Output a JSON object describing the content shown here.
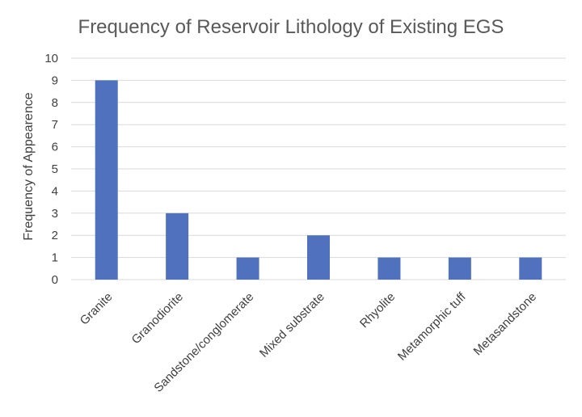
{
  "chart_data": {
    "type": "bar",
    "title": "Frequency of Reservoir Lithology of Existing EGS",
    "xlabel": "",
    "ylabel": "Frequency of Appearence",
    "categories": [
      "Granite",
      "Granodiorite",
      "Sandstone/conglomerate",
      "Mixed substrate",
      "Rhyolite",
      "Metamorphic tuff",
      "Metasandstone"
    ],
    "values": [
      9,
      3,
      1,
      2,
      1,
      1,
      1
    ],
    "ylim": [
      0,
      10
    ],
    "yticks": [
      0,
      1,
      2,
      3,
      4,
      5,
      6,
      7,
      8,
      9,
      10
    ],
    "grid": true,
    "legend": "none",
    "bar_color": "#4f71be"
  }
}
